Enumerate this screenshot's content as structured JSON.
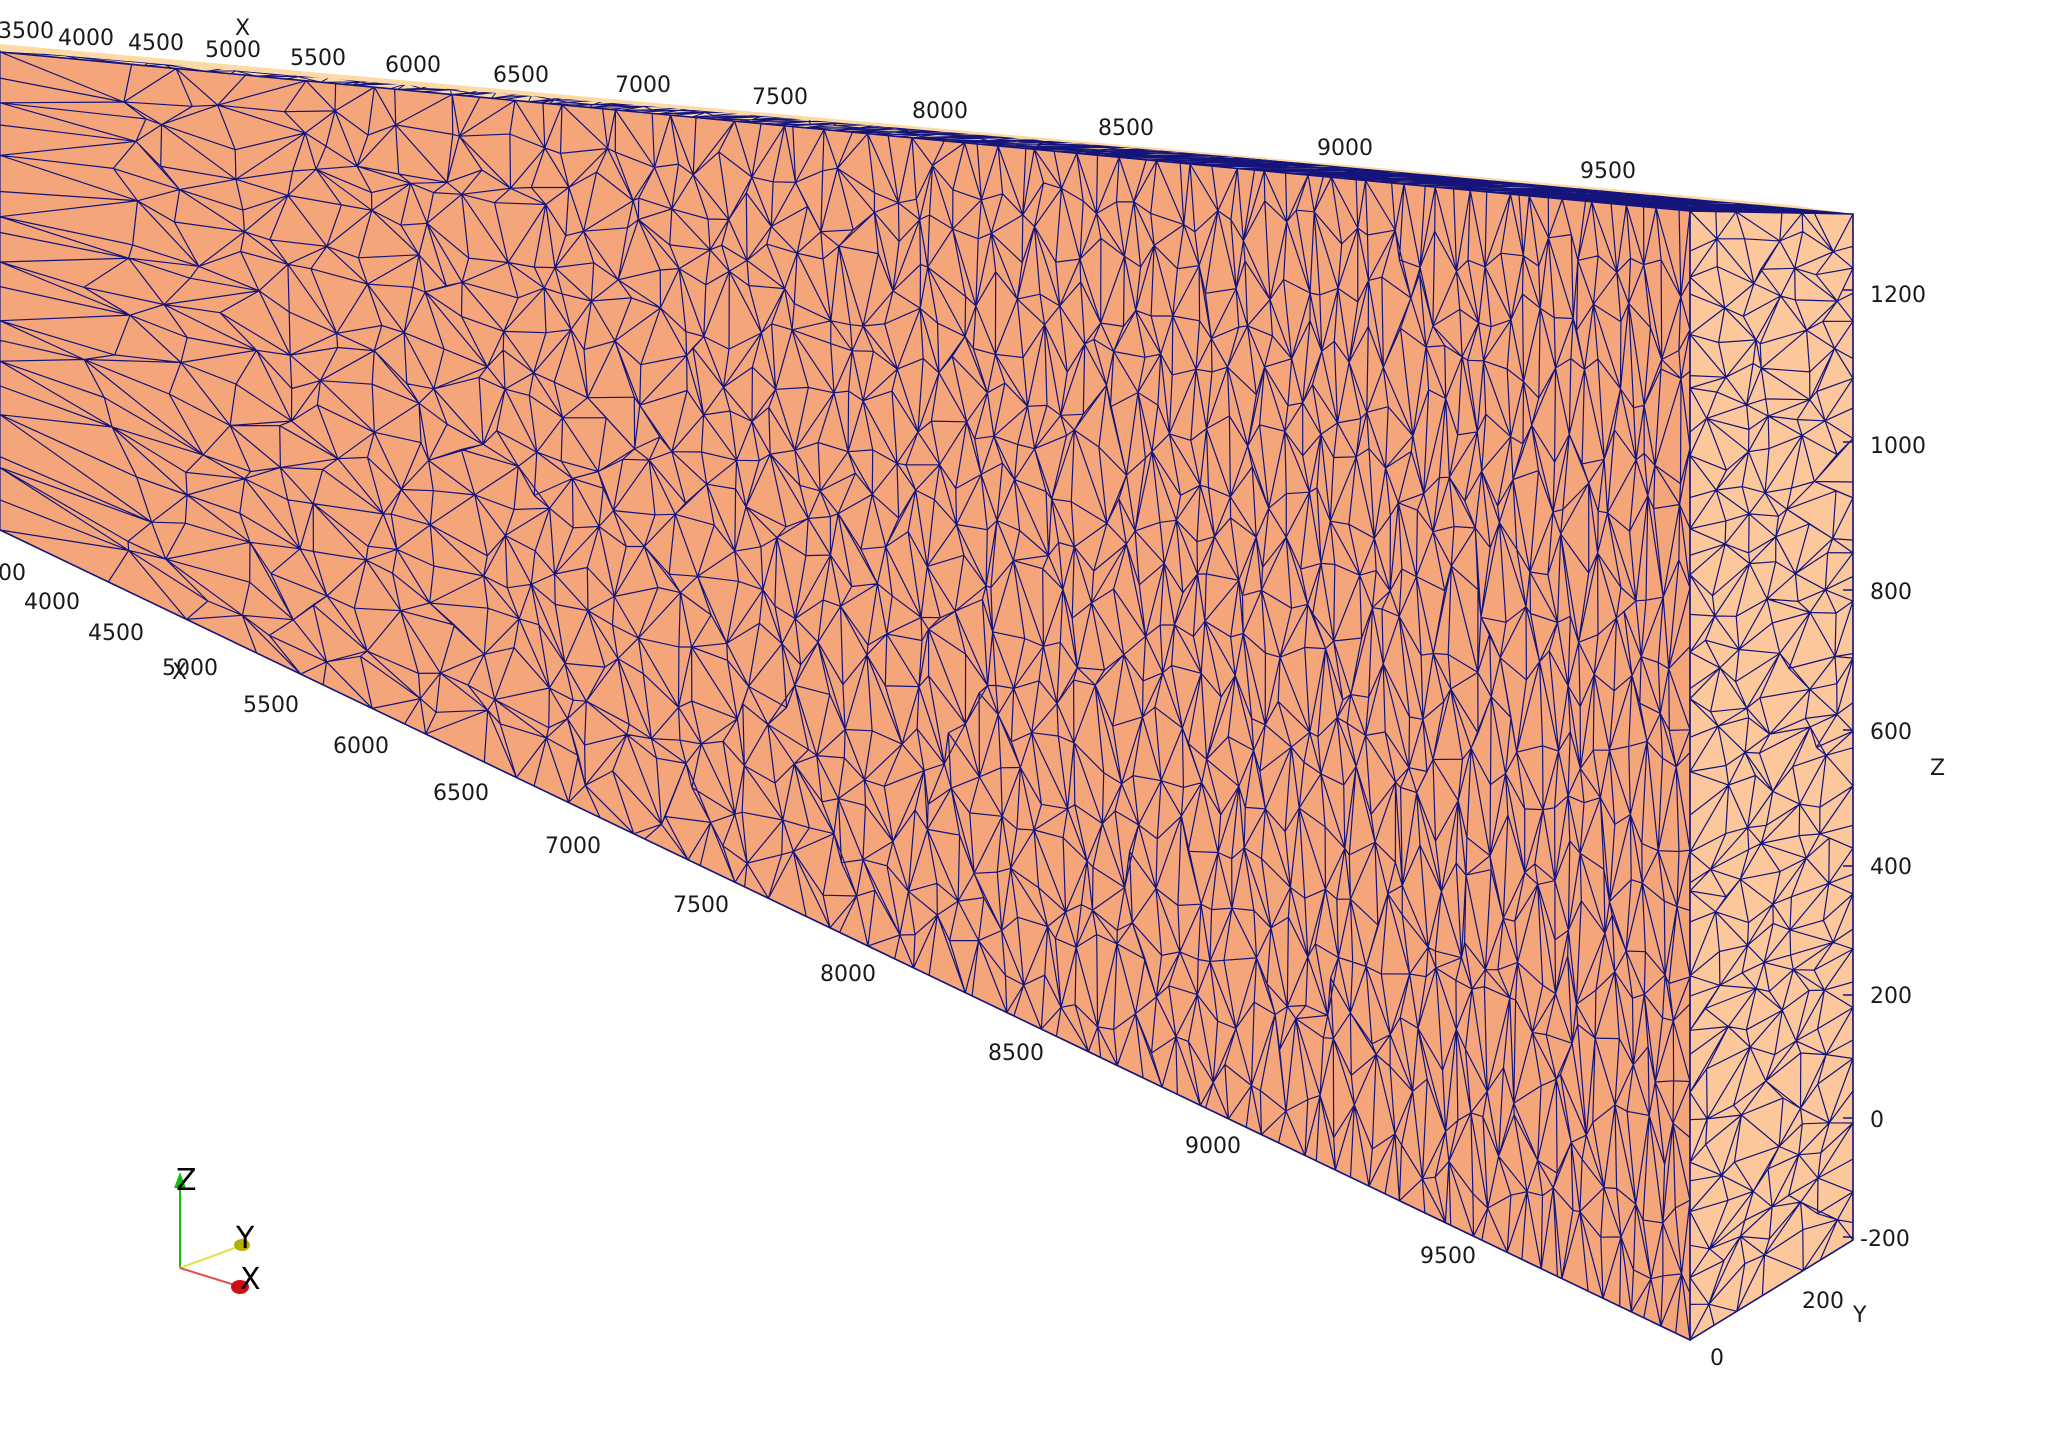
{
  "scene": {
    "top_x_ticks": [
      "3500",
      "4000",
      "4500",
      "5000",
      "5500",
      "6000",
      "6500",
      "7000",
      "7500",
      "8000",
      "8500",
      "9000",
      "9500"
    ],
    "top_x_title": "X",
    "bottom_x_ticks": [
      "00",
      "4000",
      "4500",
      "5000",
      "5500",
      "6000",
      "6500",
      "7000",
      "7500",
      "8000",
      "8500",
      "9000",
      "9500"
    ],
    "bottom_x_title": "X",
    "z_ticks": [
      "1200",
      "1000",
      "800",
      "600",
      "400",
      "200",
      "0",
      "-200"
    ],
    "z_title": "Z",
    "y_ticks": [
      "0",
      "200"
    ],
    "y_title": "Y"
  },
  "orientation_triad": {
    "z_label": "Z",
    "y_label": "Y",
    "x_label": "X"
  },
  "colors": {
    "background": "#ffffff",
    "front_face": "#f5a57a",
    "end_face": "#fcc79a",
    "top_face": "#fdd9a6",
    "mesh_edges": "#14147a",
    "triad_x": "#d01010",
    "triad_y": "#b5b000",
    "triad_z": "#10c010"
  }
}
